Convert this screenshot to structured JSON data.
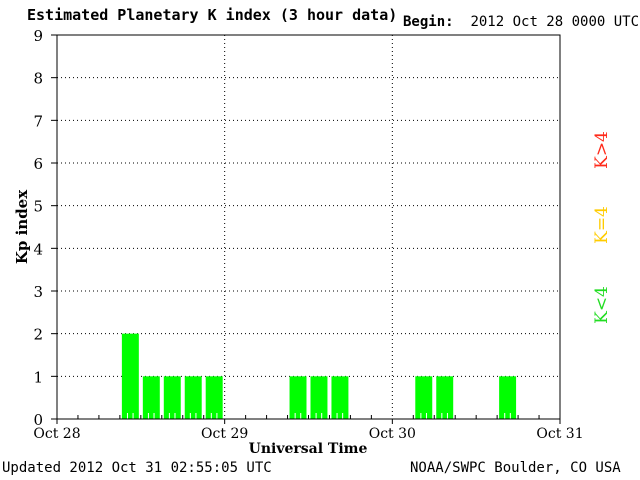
{
  "header": {
    "title": "Estimated Planetary K index (3 hour data)",
    "begin_label": "Begin:",
    "begin_value": "2012 Oct 28 0000 UTC"
  },
  "footer": {
    "updated": "Updated 2012 Oct 31 02:55:05 UTC",
    "credit": "NOAA/SWPC Boulder, CO USA"
  },
  "legend": {
    "items": [
      {
        "label": "K>4",
        "color": "#ff2a1a"
      },
      {
        "label": "K=4",
        "color": "#ffcc00"
      },
      {
        "label": "K<4",
        "color": "#22dd22"
      }
    ]
  },
  "chart_data": {
    "type": "bar",
    "title": "Estimated Planetary K index (3 hour data)",
    "xlabel": "Universal Time",
    "ylabel": "Kp index",
    "ylim": [
      0,
      9
    ],
    "yticks": [
      0,
      1,
      2,
      3,
      4,
      5,
      6,
      7,
      8,
      9
    ],
    "xlim_days": [
      0,
      3
    ],
    "xtick_labels": [
      "Oct 28",
      "Oct 29",
      "Oct 30",
      "Oct 31"
    ],
    "grid": "dotted",
    "bar_color": "#00ff00",
    "bins_per_day": 8,
    "values": [
      null,
      null,
      null,
      2,
      1,
      1,
      1,
      1,
      null,
      null,
      null,
      1,
      1,
      1,
      null,
      null,
      null,
      1,
      1,
      null,
      null,
      1,
      null,
      null
    ]
  }
}
